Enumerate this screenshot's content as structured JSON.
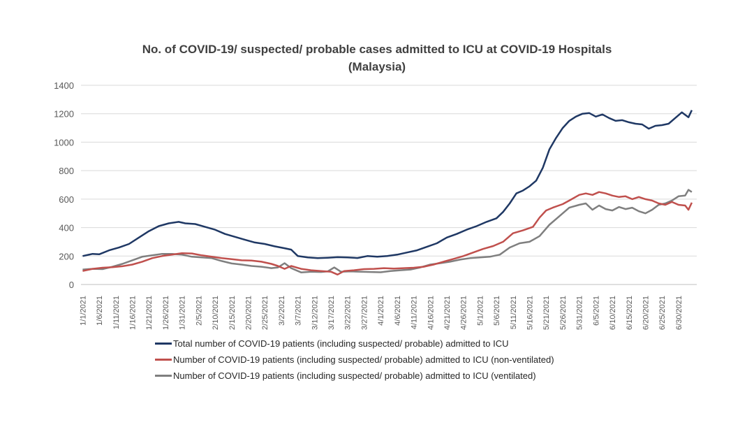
{
  "chart_data": {
    "type": "line",
    "title": "No. of COVID-19/ suspected/ probable cases admitted to ICU at COVID-19 Hospitals",
    "subtitle": "(Malaysia)",
    "xlabel": "",
    "ylabel": "",
    "ylim": [
      0,
      1400
    ],
    "yticks": [
      "0",
      "200",
      "400",
      "600",
      "800",
      "1000",
      "1200",
      "1400"
    ],
    "grid": true,
    "legend_position": "bottom",
    "x_tick_labels": [
      "1/1/2021",
      "1/6/2021",
      "1/11/2021",
      "1/16/2021",
      "1/21/2021",
      "1/26/2021",
      "1/31/2021",
      "2/5/2021",
      "2/10/2021",
      "2/15/2021",
      "2/20/2021",
      "2/25/2021",
      "3/2/2021",
      "3/7/2021",
      "3/12/2021",
      "3/17/2021",
      "3/22/2021",
      "3/27/2021",
      "4/1/2021",
      "4/6/2021",
      "4/11/2021",
      "4/16/2021",
      "4/21/2021",
      "4/26/2021",
      "5/1/2021",
      "5/6/2021",
      "5/11/2021",
      "5/16/2021",
      "5/21/2021",
      "5/26/2021",
      "5/31/2021",
      "6/5/2021",
      "6/10/2021",
      "6/15/2021",
      "6/20/2021",
      "6/25/2021",
      "6/30/2021"
    ],
    "series": [
      {
        "name": "Total number of COVID-19 patients (including suspected/ probable) admitted to ICU",
        "color": "#1f3864",
        "points": [
          [
            "2021-01-01",
            200
          ],
          [
            "2021-01-04",
            215
          ],
          [
            "2021-01-06",
            212
          ],
          [
            "2021-01-09",
            240
          ],
          [
            "2021-01-12",
            260
          ],
          [
            "2021-01-15",
            285
          ],
          [
            "2021-01-18",
            330
          ],
          [
            "2021-01-21",
            375
          ],
          [
            "2021-01-24",
            410
          ],
          [
            "2021-01-27",
            430
          ],
          [
            "2021-01-30",
            440
          ],
          [
            "2021-02-01",
            430
          ],
          [
            "2021-02-04",
            425
          ],
          [
            "2021-02-07",
            405
          ],
          [
            "2021-02-10",
            385
          ],
          [
            "2021-02-13",
            355
          ],
          [
            "2021-02-16",
            335
          ],
          [
            "2021-02-19",
            315
          ],
          [
            "2021-02-22",
            295
          ],
          [
            "2021-02-25",
            285
          ],
          [
            "2021-02-28",
            268
          ],
          [
            "2021-03-03",
            255
          ],
          [
            "2021-03-05",
            245
          ],
          [
            "2021-03-07",
            200
          ],
          [
            "2021-03-10",
            190
          ],
          [
            "2021-03-13",
            185
          ],
          [
            "2021-03-16",
            188
          ],
          [
            "2021-03-19",
            192
          ],
          [
            "2021-03-22",
            190
          ],
          [
            "2021-03-25",
            186
          ],
          [
            "2021-03-28",
            200
          ],
          [
            "2021-03-31",
            195
          ],
          [
            "2021-04-03",
            200
          ],
          [
            "2021-04-06",
            210
          ],
          [
            "2021-04-09",
            225
          ],
          [
            "2021-04-12",
            240
          ],
          [
            "2021-04-15",
            265
          ],
          [
            "2021-04-18",
            290
          ],
          [
            "2021-04-21",
            330
          ],
          [
            "2021-04-24",
            355
          ],
          [
            "2021-04-27",
            385
          ],
          [
            "2021-04-30",
            410
          ],
          [
            "2021-05-03",
            440
          ],
          [
            "2021-05-06",
            465
          ],
          [
            "2021-05-08",
            510
          ],
          [
            "2021-05-10",
            570
          ],
          [
            "2021-05-12",
            640
          ],
          [
            "2021-05-14",
            660
          ],
          [
            "2021-05-16",
            690
          ],
          [
            "2021-05-18",
            730
          ],
          [
            "2021-05-20",
            820
          ],
          [
            "2021-05-22",
            950
          ],
          [
            "2021-05-24",
            1030
          ],
          [
            "2021-05-26",
            1100
          ],
          [
            "2021-05-28",
            1150
          ],
          [
            "2021-05-30",
            1180
          ],
          [
            "2021-06-01",
            1200
          ],
          [
            "2021-06-03",
            1205
          ],
          [
            "2021-06-05",
            1180
          ],
          [
            "2021-06-07",
            1195
          ],
          [
            "2021-06-09",
            1170
          ],
          [
            "2021-06-11",
            1150
          ],
          [
            "2021-06-13",
            1155
          ],
          [
            "2021-06-15",
            1140
          ],
          [
            "2021-06-17",
            1130
          ],
          [
            "2021-06-19",
            1125
          ],
          [
            "2021-06-21",
            1095
          ],
          [
            "2021-06-23",
            1115
          ],
          [
            "2021-06-25",
            1120
          ],
          [
            "2021-06-27",
            1130
          ],
          [
            "2021-06-29",
            1170
          ],
          [
            "2021-07-01",
            1210
          ],
          [
            "2021-07-03",
            1175
          ],
          [
            "2021-07-04",
            1225
          ]
        ]
      },
      {
        "name": "Number of COVID-19 patients (including suspected/ probable) admitted to ICU (non-ventilated)",
        "color": "#c0504d",
        "points": [
          [
            "2021-01-01",
            95
          ],
          [
            "2021-01-04",
            110
          ],
          [
            "2021-01-07",
            118
          ],
          [
            "2021-01-10",
            122
          ],
          [
            "2021-01-13",
            128
          ],
          [
            "2021-01-16",
            140
          ],
          [
            "2021-01-19",
            160
          ],
          [
            "2021-01-22",
            185
          ],
          [
            "2021-01-25",
            200
          ],
          [
            "2021-01-28",
            210
          ],
          [
            "2021-01-31",
            220
          ],
          [
            "2021-02-03",
            218
          ],
          [
            "2021-02-06",
            205
          ],
          [
            "2021-02-09",
            195
          ],
          [
            "2021-02-12",
            185
          ],
          [
            "2021-02-15",
            178
          ],
          [
            "2021-02-18",
            170
          ],
          [
            "2021-02-21",
            168
          ],
          [
            "2021-02-24",
            160
          ],
          [
            "2021-02-27",
            145
          ],
          [
            "2021-03-01",
            130
          ],
          [
            "2021-03-03",
            110
          ],
          [
            "2021-03-05",
            130
          ],
          [
            "2021-03-08",
            110
          ],
          [
            "2021-03-11",
            100
          ],
          [
            "2021-03-14",
            95
          ],
          [
            "2021-03-17",
            90
          ],
          [
            "2021-03-19",
            70
          ],
          [
            "2021-03-21",
            95
          ],
          [
            "2021-03-24",
            100
          ],
          [
            "2021-03-27",
            108
          ],
          [
            "2021-03-30",
            110
          ],
          [
            "2021-04-02",
            115
          ],
          [
            "2021-04-05",
            112
          ],
          [
            "2021-04-08",
            115
          ],
          [
            "2021-04-11",
            118
          ],
          [
            "2021-04-14",
            125
          ],
          [
            "2021-04-17",
            140
          ],
          [
            "2021-04-20",
            160
          ],
          [
            "2021-04-23",
            180
          ],
          [
            "2021-04-26",
            200
          ],
          [
            "2021-04-29",
            225
          ],
          [
            "2021-05-02",
            250
          ],
          [
            "2021-05-05",
            270
          ],
          [
            "2021-05-08",
            300
          ],
          [
            "2021-05-11",
            360
          ],
          [
            "2021-05-14",
            380
          ],
          [
            "2021-05-17",
            405
          ],
          [
            "2021-05-19",
            470
          ],
          [
            "2021-05-21",
            520
          ],
          [
            "2021-05-23",
            540
          ],
          [
            "2021-05-26",
            565
          ],
          [
            "2021-05-28",
            590
          ],
          [
            "2021-05-31",
            630
          ],
          [
            "2021-06-02",
            640
          ],
          [
            "2021-06-04",
            630
          ],
          [
            "2021-06-06",
            650
          ],
          [
            "2021-06-08",
            640
          ],
          [
            "2021-06-10",
            625
          ],
          [
            "2021-06-12",
            615
          ],
          [
            "2021-06-14",
            620
          ],
          [
            "2021-06-16",
            600
          ],
          [
            "2021-06-18",
            615
          ],
          [
            "2021-06-20",
            600
          ],
          [
            "2021-06-22",
            590
          ],
          [
            "2021-06-24",
            570
          ],
          [
            "2021-06-26",
            560
          ],
          [
            "2021-06-28",
            580
          ],
          [
            "2021-06-30",
            560
          ],
          [
            "2021-07-02",
            555
          ],
          [
            "2021-07-03",
            525
          ],
          [
            "2021-07-04",
            575
          ]
        ]
      },
      {
        "name": "Number of COVID-19 patients (including suspected/ probable) admitted to ICU (ventilated)",
        "color": "#7f7f7f",
        "points": [
          [
            "2021-01-01",
            105
          ],
          [
            "2021-01-04",
            110
          ],
          [
            "2021-01-07",
            108
          ],
          [
            "2021-01-10",
            125
          ],
          [
            "2021-01-13",
            145
          ],
          [
            "2021-01-16",
            170
          ],
          [
            "2021-01-19",
            195
          ],
          [
            "2021-01-22",
            205
          ],
          [
            "2021-01-25",
            215
          ],
          [
            "2021-01-28",
            215
          ],
          [
            "2021-01-31",
            210
          ],
          [
            "2021-02-03",
            195
          ],
          [
            "2021-02-06",
            190
          ],
          [
            "2021-02-09",
            185
          ],
          [
            "2021-02-12",
            165
          ],
          [
            "2021-02-15",
            148
          ],
          [
            "2021-02-18",
            140
          ],
          [
            "2021-02-21",
            130
          ],
          [
            "2021-02-24",
            125
          ],
          [
            "2021-02-27",
            115
          ],
          [
            "2021-03-01",
            120
          ],
          [
            "2021-03-03",
            150
          ],
          [
            "2021-03-05",
            115
          ],
          [
            "2021-03-08",
            85
          ],
          [
            "2021-03-11",
            90
          ],
          [
            "2021-03-14",
            88
          ],
          [
            "2021-03-16",
            92
          ],
          [
            "2021-03-18",
            120
          ],
          [
            "2021-03-20",
            90
          ],
          [
            "2021-03-23",
            92
          ],
          [
            "2021-03-26",
            90
          ],
          [
            "2021-03-29",
            88
          ],
          [
            "2021-04-01",
            86
          ],
          [
            "2021-04-04",
            95
          ],
          [
            "2021-04-07",
            100
          ],
          [
            "2021-04-10",
            105
          ],
          [
            "2021-04-13",
            120
          ],
          [
            "2021-04-16",
            140
          ],
          [
            "2021-04-19",
            150
          ],
          [
            "2021-04-22",
            160
          ],
          [
            "2021-04-25",
            175
          ],
          [
            "2021-04-28",
            185
          ],
          [
            "2021-05-01",
            190
          ],
          [
            "2021-05-04",
            195
          ],
          [
            "2021-05-07",
            210
          ],
          [
            "2021-05-10",
            260
          ],
          [
            "2021-05-13",
            290
          ],
          [
            "2021-05-16",
            300
          ],
          [
            "2021-05-19",
            340
          ],
          [
            "2021-05-22",
            420
          ],
          [
            "2021-05-25",
            480
          ],
          [
            "2021-05-28",
            540
          ],
          [
            "2021-05-31",
            560
          ],
          [
            "2021-06-02",
            570
          ],
          [
            "2021-06-04",
            525
          ],
          [
            "2021-06-06",
            555
          ],
          [
            "2021-06-08",
            530
          ],
          [
            "2021-06-10",
            520
          ],
          [
            "2021-06-12",
            545
          ],
          [
            "2021-06-14",
            530
          ],
          [
            "2021-06-16",
            540
          ],
          [
            "2021-06-18",
            515
          ],
          [
            "2021-06-20",
            500
          ],
          [
            "2021-06-22",
            525
          ],
          [
            "2021-06-24",
            560
          ],
          [
            "2021-06-26",
            570
          ],
          [
            "2021-06-28",
            590
          ],
          [
            "2021-06-30",
            620
          ],
          [
            "2021-07-02",
            625
          ],
          [
            "2021-07-03",
            665
          ],
          [
            "2021-07-04",
            650
          ]
        ]
      }
    ]
  }
}
